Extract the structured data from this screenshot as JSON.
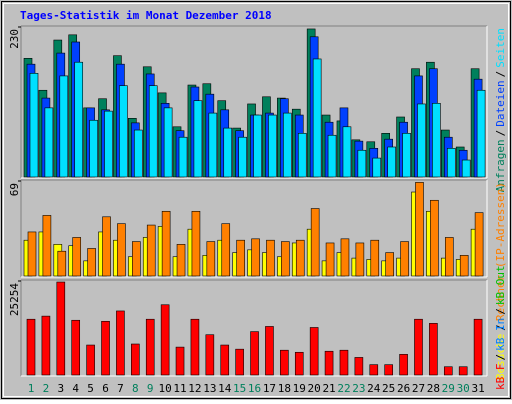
{
  "title": "Tages-Statistik im Monat Dezember 2018",
  "legend_separator": "/",
  "chart_data": [
    {
      "type": "bar",
      "ylim": [
        0,
        230
      ],
      "yticks": [
        230
      ],
      "series": [
        {
          "name": "Anfragen",
          "color": "#00805c",
          "values": [
            182,
            133,
            210,
            218,
            106,
            120,
            186,
            90,
            169,
            129,
            77,
            141,
            143,
            117,
            75,
            112,
            123,
            121,
            104,
            227,
            95,
            86,
            57,
            54,
            67,
            92,
            166,
            176,
            72,
            46,
            166
          ]
        },
        {
          "name": "Dateien",
          "color": "#0040ff",
          "values": [
            173,
            121,
            190,
            207,
            106,
            103,
            173,
            83,
            158,
            113,
            71,
            138,
            127,
            103,
            71,
            95,
            98,
            120,
            95,
            215,
            84,
            106,
            55,
            44,
            58,
            84,
            155,
            166,
            61,
            41,
            150
          ]
        },
        {
          "name": "Seiten",
          "color": "#00e0ff",
          "values": [
            159,
            106,
            155,
            176,
            87,
            101,
            140,
            72,
            140,
            106,
            61,
            117,
            98,
            75,
            61,
            95,
            95,
            98,
            67,
            181,
            64,
            77,
            41,
            29,
            46,
            67,
            112,
            113,
            44,
            26,
            133
          ]
        }
      ]
    },
    {
      "type": "bar",
      "ylim": [
        0,
        69
      ],
      "yticks": [
        69
      ],
      "series": [
        {
          "name": "Besuche",
          "color": "#ffff00",
          "values": [
            26,
            32,
            23,
            22,
            11,
            32,
            26,
            14,
            28,
            36,
            14,
            34,
            15,
            26,
            17,
            19,
            17,
            14,
            24,
            34,
            11,
            17,
            13,
            12,
            11,
            13,
            61,
            47,
            13,
            12,
            34
          ]
        },
        {
          "name": "Rechner (IP-Adressen)",
          "color": "#ff8000",
          "values": [
            32,
            44,
            18,
            28,
            20,
            43,
            38,
            25,
            37,
            47,
            23,
            47,
            25,
            38,
            26,
            27,
            26,
            25,
            26,
            49,
            24,
            27,
            24,
            26,
            17,
            25,
            68,
            55,
            28,
            15,
            46
          ]
        }
      ]
    },
    {
      "type": "bar",
      "ylim": [
        0,
        25254
      ],
      "yticks": [
        25254
      ],
      "categories": [
        "1",
        "2",
        "3",
        "4",
        "5",
        "6",
        "7",
        "8",
        "9",
        "10",
        "11",
        "12",
        "13",
        "14",
        "15",
        "16",
        "17",
        "18",
        "19",
        "20",
        "21",
        "22",
        "23",
        "24",
        "25",
        "26",
        "27",
        "28",
        "29",
        "30",
        "31"
      ],
      "category_colors": [
        "#00805c",
        "#00805c",
        "#000000",
        "#000000",
        "#000000",
        "#000000",
        "#000000",
        "#00805c",
        "#00805c",
        "#000000",
        "#000000",
        "#000000",
        "#000000",
        "#000000",
        "#00805c",
        "#00805c",
        "#000000",
        "#000000",
        "#000000",
        "#000000",
        "#000000",
        "#00805c",
        "#00805c",
        "#000000",
        "#000000",
        "#000000",
        "#000000",
        "#000000",
        "#00805c",
        "#00805c",
        "#000000"
      ],
      "series": [
        {
          "name": "kB F",
          "color": "#ff0000",
          "values": [
            14985,
            15818,
            24975,
            14708,
            8048,
            14430,
            17205,
            8325,
            14985,
            18870,
            7493,
            14985,
            10823,
            8048,
            6938,
            11655,
            13043,
            6660,
            6105,
            12765,
            6383,
            6660,
            4718,
            2775,
            2775,
            5550,
            14985,
            13875,
            2220,
            2220,
            14985
          ]
        }
      ],
      "legend_labels": [
        {
          "text": "kB In",
          "color": "#0080ff"
        },
        {
          "text": "kB Out",
          "color": "#00c000"
        }
      ]
    }
  ]
}
